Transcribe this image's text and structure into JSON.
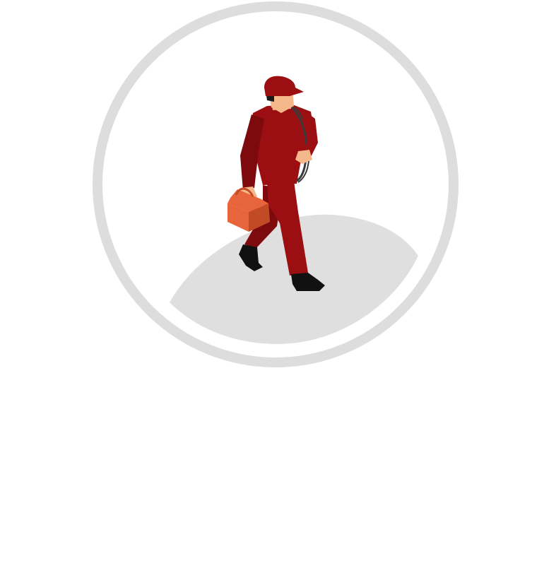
{
  "illustration": {
    "subject": "worker-walking-with-toolbox",
    "colors": {
      "background": "#ffffff",
      "ring": "#dddddd",
      "floor": "#dfdfdf",
      "uniform": "#9b0f12",
      "uniform_shadow": "#7d0a0d",
      "skin": "#f4b88a",
      "hair": "#1a1a1a",
      "boots": "#111111",
      "toolbox": "#e8643a",
      "toolbox_dark": "#c24a25",
      "cable": "#3a3a3a"
    }
  }
}
